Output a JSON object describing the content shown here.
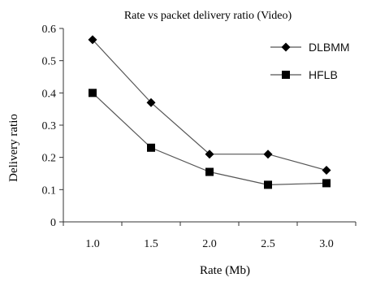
{
  "chart_data": {
    "type": "line",
    "title": "Rate vs packet delivery ratio (Video)",
    "xlabel": "Rate (Mb)",
    "ylabel": "Delivery ratio",
    "categories": [
      "1.0",
      "1.5",
      "2.0",
      "2.5",
      "3.0"
    ],
    "y_ticks": [
      "0",
      "0.1",
      "0.2",
      "0.3",
      "0.4",
      "0.5",
      "0.6"
    ],
    "ylim": [
      0,
      0.6
    ],
    "grid": false,
    "legend_position": "top-right",
    "series": [
      {
        "name": "DLBMM",
        "marker": "diamond",
        "values": [
          0.565,
          0.37,
          0.21,
          0.21,
          0.16
        ]
      },
      {
        "name": "HFLB",
        "marker": "square",
        "values": [
          0.4,
          0.23,
          0.155,
          0.115,
          0.12
        ]
      }
    ],
    "colors": {
      "line": "#555555",
      "marker": "#000000",
      "axis": "#333333",
      "text": "#111111"
    }
  }
}
